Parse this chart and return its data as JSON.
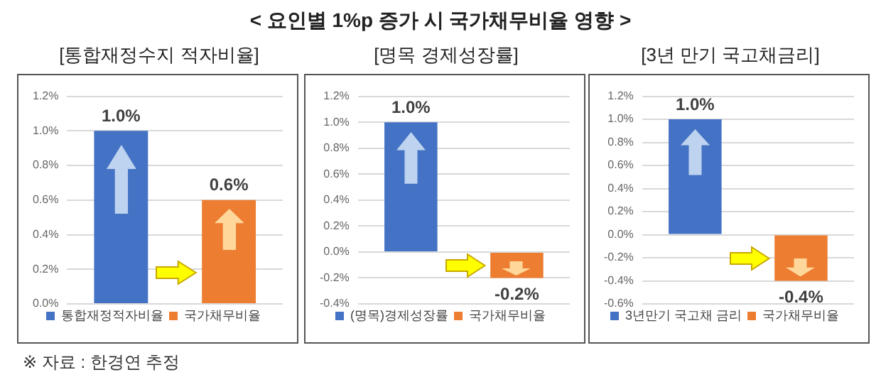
{
  "chart_data": [
    {
      "type": "other",
      "title": "< 요인별 1%p 증가 시 국가채무비율 영향 >"
    },
    {
      "type": "bar",
      "title": "[통합재정수지 적자비율]",
      "annotations": [
        "※ 자료 : 한경연 추정"
      ],
      "categories": [
        null,
        null
      ],
      "series": [
        {
          "name": "통합재정적자비율",
          "color": "#4472c4",
          "values": [
            1.0,
            null
          ],
          "value_labels": [
            "1.0%",
            null
          ]
        },
        {
          "name": "국가채무비율",
          "color": "#ed7d31",
          "values": [
            null,
            0.6
          ],
          "value_labels": [
            null,
            "0.6%"
          ]
        }
      ],
      "ylim": [
        0,
        1.2
      ],
      "yticks": [
        {
          "value": 0,
          "label": "0.0%"
        },
        {
          "value": 0.2,
          "label": "0.2%"
        },
        {
          "value": 0.4,
          "label": "0.4%"
        },
        {
          "value": 0.6,
          "label": "0.6%"
        },
        {
          "value": 0.8,
          "label": "0.8%"
        },
        {
          "value": 1.0,
          "label": "1.0%"
        },
        {
          "value": 1.2,
          "label": "1.2%"
        }
      ],
      "grid": "y",
      "legend": "bottom",
      "tick_labels": "y"
    },
    {
      "type": "bar",
      "title": "[명목 경제성장률]",
      "categories": [
        null,
        null
      ],
      "series": [
        {
          "name": "(명목)경제성장률",
          "color": "#4472c4",
          "values": [
            1.0,
            null
          ],
          "value_labels": [
            "1.0%",
            null
          ]
        },
        {
          "name": "국가채무비율",
          "color": "#ed7d31",
          "values": [
            null,
            -0.2
          ],
          "value_labels": [
            null,
            "-0.2%"
          ]
        }
      ],
      "ylim": [
        -0.4,
        1.2
      ],
      "yticks": [
        {
          "value": -0.4,
          "label": "-0.4%"
        },
        {
          "value": -0.2,
          "label": "-0.2%"
        },
        {
          "value": 0,
          "label": "0.0%"
        },
        {
          "value": 0.2,
          "label": "0.2%"
        },
        {
          "value": 0.4,
          "label": "0.4%"
        },
        {
          "value": 0.6,
          "label": "0.6%"
        },
        {
          "value": 0.8,
          "label": "0.8%"
        },
        {
          "value": 1.0,
          "label": "1.0%"
        },
        {
          "value": 1.2,
          "label": "1.2%"
        }
      ],
      "grid": "y",
      "legend": "bottom",
      "tick_labels": "y"
    },
    {
      "type": "bar",
      "title": "[3년 만기 국고채금리]",
      "categories": [
        null,
        null
      ],
      "series": [
        {
          "name": "3년만기 국고채 금리",
          "color": "#4472c4",
          "values": [
            1.0,
            null
          ],
          "value_labels": [
            "1.0%",
            null
          ]
        },
        {
          "name": "국가채무비율",
          "color": "#ed7d31",
          "values": [
            null,
            -0.4
          ],
          "value_labels": [
            null,
            "-0.4%"
          ]
        }
      ],
      "ylim": [
        -0.6,
        1.2
      ],
      "yticks": [
        {
          "value": -0.6,
          "label": "-0.6%"
        },
        {
          "value": -0.4,
          "label": "-0.4%"
        },
        {
          "value": -0.2,
          "label": "-0.2%"
        },
        {
          "value": 0,
          "label": "0.0%"
        },
        {
          "value": 0.2,
          "label": "0.2%"
        },
        {
          "value": 0.4,
          "label": "0.4%"
        },
        {
          "value": 0.6,
          "label": "0.6%"
        },
        {
          "value": 0.8,
          "label": "0.8%"
        },
        {
          "value": 1.0,
          "label": "1.0%"
        },
        {
          "value": 1.2,
          "label": "1.2%"
        }
      ],
      "grid": "y",
      "legend": "bottom",
      "tick_labels": "y"
    }
  ]
}
